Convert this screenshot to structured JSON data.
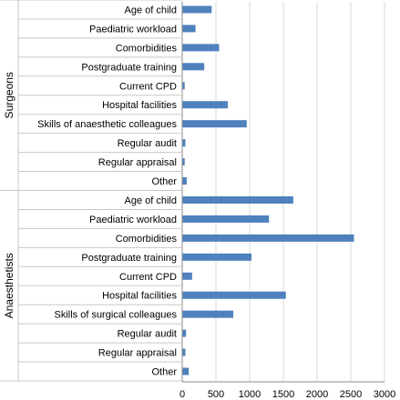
{
  "chart_data": {
    "type": "bar",
    "orientation": "horizontal",
    "title": "",
    "xlabel": "",
    "ylabel": "",
    "xlim": [
      0,
      3000
    ],
    "xticks": [
      0,
      500,
      1000,
      1500,
      2000,
      2500,
      3000
    ],
    "grid": "vertical",
    "legend": "none",
    "bar_color": "#4f81bd",
    "groups": [
      {
        "name": "Surgeons",
        "categories": [
          "Age of child",
          "Paediatric workload",
          "Comorbidities",
          "Postgraduate training",
          "Current CPD",
          "Hospital facilities",
          "Skills of anaesthetic colleagues",
          "Regular audit",
          "Regular appraisal",
          "Other"
        ],
        "values": [
          430,
          190,
          540,
          320,
          30,
          670,
          950,
          40,
          30,
          60
        ]
      },
      {
        "name": "Anaesthetists",
        "categories": [
          "Age of child",
          "Paediatric workload",
          "Comorbidities",
          "Postgraduate training",
          "Current CPD",
          "Hospital facilities",
          "Skills of surgical colleagues",
          "Regular audit",
          "Regular appraisal",
          "Other"
        ],
        "values": [
          1640,
          1280,
          2540,
          1020,
          140,
          1530,
          750,
          50,
          40,
          90
        ]
      }
    ]
  }
}
